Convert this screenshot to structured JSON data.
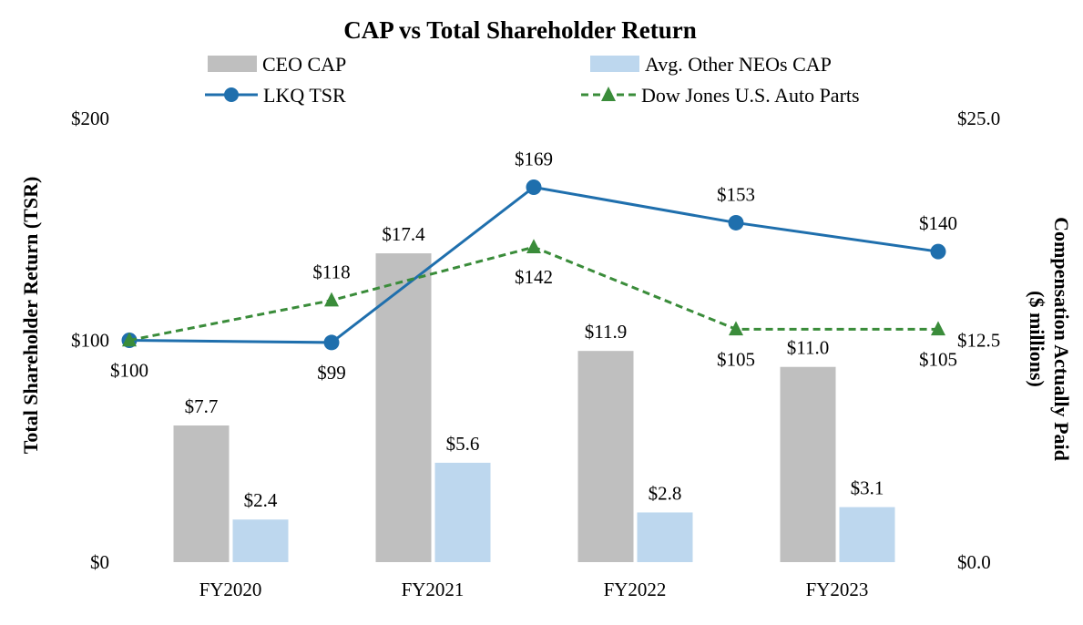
{
  "chart_data": {
    "type": "bar+line",
    "title": "CAP vs Total Shareholder Return",
    "categories": [
      "FY2020",
      "FY2021",
      "FY2022",
      "FY2023"
    ],
    "y_left": {
      "label": "Total Shareholder Return (TSR)",
      "range": [
        0,
        200
      ],
      "ticks": [
        "$0",
        "$100",
        "$200"
      ],
      "tick_values": [
        0,
        100,
        200
      ]
    },
    "y_right": {
      "label_line1": "Compensation Actually Paid",
      "label_line2": "($ millions)",
      "range": [
        0,
        25
      ],
      "ticks": [
        "$0.0",
        "$12.5",
        "$25.0"
      ],
      "tick_values": [
        0,
        12.5,
        25
      ]
    },
    "bar_series": [
      {
        "name": "CEO CAP",
        "color": "#bfbfbf",
        "values": [
          7.7,
          17.4,
          11.9,
          11.0
        ],
        "labels": [
          "$7.7",
          "$17.4",
          "$11.9",
          "$11.0"
        ]
      },
      {
        "name": "Avg. Other NEOs CAP",
        "color": "#bdd7ee",
        "values": [
          2.4,
          5.6,
          2.8,
          3.1
        ],
        "labels": [
          "$2.4",
          "$5.6",
          "$2.8",
          "$3.1"
        ]
      }
    ],
    "line_series": [
      {
        "name": "LKQ TSR",
        "color": "#1f6fad",
        "marker": "circle",
        "dash": "solid",
        "values": [
          100,
          99,
          169,
          153,
          140
        ],
        "labels": [
          "$100",
          "$99",
          "$169",
          "$153",
          "$140"
        ],
        "label_pos": [
          "below",
          "below",
          "above",
          "above",
          "above"
        ]
      },
      {
        "name": "Dow Jones U.S. Auto Parts",
        "color": "#3a8c3a",
        "marker": "triangle",
        "dash": "dashed",
        "values": [
          100,
          118,
          142,
          105,
          105
        ],
        "labels": [
          "",
          "$118",
          "$142",
          "$105",
          "$105"
        ],
        "label_pos": [
          "none",
          "above",
          "below",
          "below",
          "below"
        ]
      }
    ],
    "legend": [
      {
        "name": "CEO CAP",
        "kind": "bar",
        "color": "#bfbfbf"
      },
      {
        "name": "Avg. Other NEOs CAP",
        "kind": "bar",
        "color": "#bdd7ee"
      },
      {
        "name": "LKQ TSR",
        "kind": "line-circle",
        "color": "#1f6fad"
      },
      {
        "name": "Dow Jones U.S. Auto Parts",
        "kind": "line-triangle-dashed",
        "color": "#3a8c3a"
      }
    ],
    "legend_position": "top-center",
    "grid": false
  }
}
